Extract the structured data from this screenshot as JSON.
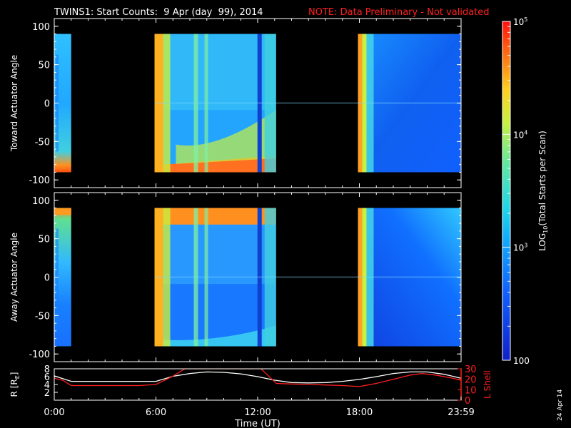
{
  "header": {
    "title": "TWINS1: Start Counts:  9 Apr (day  99), 2014",
    "note": "NOTE: Data Preliminary - Not validated"
  },
  "side_date": "24 Apr 14",
  "colors": {
    "background": "#000000",
    "axes": "#ffffff",
    "note": "#ff2020",
    "r_line": "#ffffff",
    "lshell_line": "#ff2020"
  },
  "chart_data": [
    {
      "type": "heatmap",
      "name": "toward",
      "title": "",
      "ylabel": "Toward Actuator Angle",
      "xlim": [
        0,
        24
      ],
      "ylim": [
        -110,
        110
      ],
      "yticks": [
        -100,
        -50,
        0,
        50,
        100
      ],
      "data_yrange": [
        -90,
        90
      ],
      "color_scale": "log",
      "clim": [
        100,
        100000
      ],
      "data_segments": [
        {
          "start": "0:00",
          "end": "1:00",
          "typical_counts": 1500
        },
        {
          "start": "5:55",
          "end": "13:05",
          "typical_counts": 1200
        },
        {
          "start": "17:55",
          "end": "24:00",
          "typical_counts": 500
        }
      ],
      "gaps": [
        [
          "1:00",
          "5:55"
        ],
        [
          "13:05",
          "17:55"
        ]
      ]
    },
    {
      "type": "heatmap",
      "name": "away",
      "title": "",
      "ylabel": "Away Actuator Angle",
      "xlim": [
        0,
        24
      ],
      "ylim": [
        -110,
        110
      ],
      "yticks": [
        -100,
        -50,
        0,
        50,
        100
      ],
      "data_yrange": [
        -90,
        90
      ],
      "color_scale": "log",
      "clim": [
        100,
        100000
      ],
      "data_segments": [
        {
          "start": "0:00",
          "end": "1:00",
          "typical_counts": 2500
        },
        {
          "start": "5:55",
          "end": "13:05",
          "typical_counts": 1200
        },
        {
          "start": "17:55",
          "end": "24:00",
          "typical_counts": 400
        }
      ],
      "gaps": [
        [
          "1:00",
          "5:55"
        ],
        [
          "13:05",
          "17:55"
        ]
      ]
    },
    {
      "type": "line",
      "name": "orbit",
      "title": "",
      "xlabel": "Time (UT)",
      "xticks": [
        "0:00",
        "6:00",
        "12:00",
        "18:00",
        "23:59"
      ],
      "xlim": [
        0,
        24
      ],
      "y_left": {
        "label": "R [R",
        "label_sub": "E",
        "label_end": "]",
        "ylim": [
          0,
          8
        ],
        "ticks": [
          "2",
          "4",
          "6",
          "8"
        ]
      },
      "y_right": {
        "label": "L Shell",
        "ylim": [
          0,
          30
        ],
        "ticks": [
          "0",
          "10",
          "20",
          "30"
        ]
      },
      "series": [
        {
          "name": "R",
          "axis": "left",
          "x": [
            0,
            1,
            2,
            3,
            4,
            5,
            6,
            7,
            8,
            9,
            10,
            11,
            12,
            13,
            14,
            15,
            16,
            17,
            18,
            19,
            20,
            21,
            22,
            23,
            24
          ],
          "y": [
            6.2,
            4.8,
            4.8,
            4.8,
            4.8,
            4.8,
            4.8,
            6.1,
            6.8,
            7.2,
            7.1,
            6.7,
            6.0,
            5.1,
            4.5,
            4.4,
            4.5,
            4.8,
            5.3,
            6.0,
            6.8,
            7.2,
            7.2,
            6.6,
            5.6
          ]
        },
        {
          "name": "L Shell",
          "axis": "right",
          "x": [
            0,
            0.5,
            1,
            2,
            3,
            4,
            5,
            6,
            7,
            7.7,
            12.2,
            13.1,
            14,
            15,
            16,
            17,
            18,
            19,
            20,
            21,
            21.7,
            22.5,
            23.5,
            24
          ],
          "y": [
            21,
            19,
            14,
            14,
            14,
            14,
            14,
            15,
            23,
            30,
            30,
            16,
            15.5,
            15,
            14.5,
            14,
            13,
            16,
            20,
            24,
            25.5,
            24,
            21,
            19
          ]
        }
      ]
    }
  ],
  "colorbar": {
    "label_prefix": "LOG",
    "label_sub": "10",
    "label_suffix": "(Total Starts per Scan)",
    "scale": "log",
    "clim": [
      100,
      100000
    ],
    "major": [
      {
        "value": 100,
        "text": "100",
        "exp": ""
      },
      {
        "value": 1000,
        "text": "10",
        "exp": "3"
      },
      {
        "value": 10000,
        "text": "10",
        "exp": "4"
      },
      {
        "value": 100000,
        "text": "10",
        "exp": "5"
      }
    ]
  }
}
